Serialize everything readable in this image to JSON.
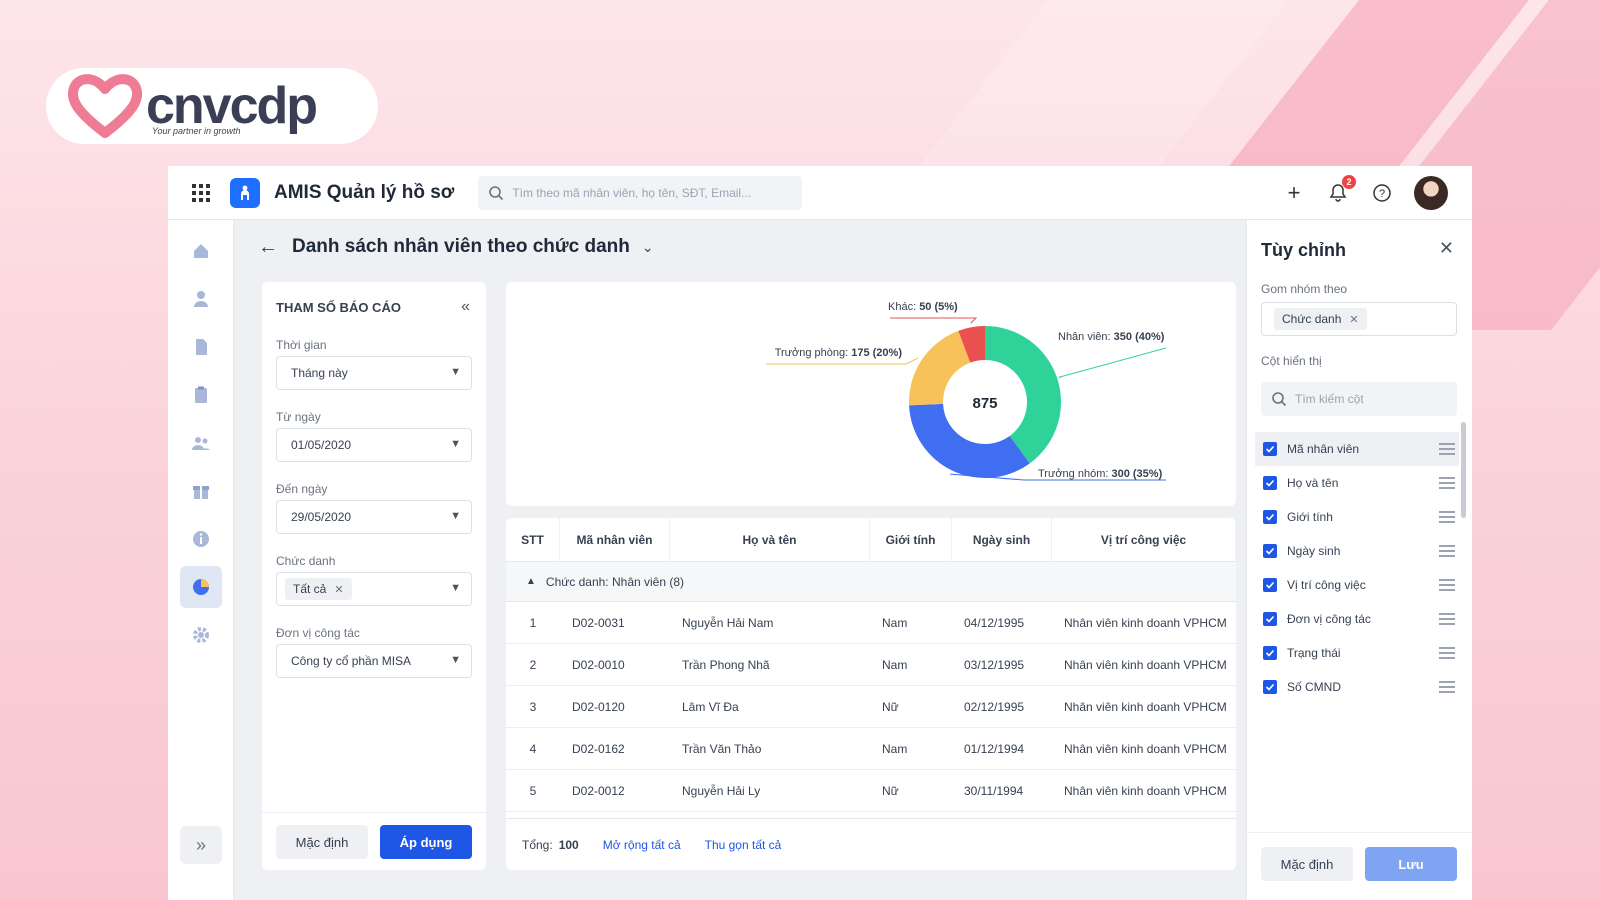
{
  "brand": {
    "name": "cnvcdp",
    "tagline": "Your partner in growth",
    "heart_color": "#ef7c95"
  },
  "app": {
    "title": "AMIS Quản lý hồ sơ",
    "search_placeholder": "Tìm theo mã nhân viên, họ tên, SĐT, Email...",
    "notification_count": "2",
    "accent": "#1e57e6"
  },
  "nav": {
    "items": [
      {
        "icon": "home-icon"
      },
      {
        "icon": "person-icon"
      },
      {
        "icon": "document-icon"
      },
      {
        "icon": "clipboard-icon"
      },
      {
        "icon": "people-icon"
      },
      {
        "icon": "gift-icon"
      },
      {
        "icon": "info-icon"
      },
      {
        "icon": "pie-chart-icon",
        "active": true
      },
      {
        "icon": "gear-icon"
      }
    ],
    "expand": "»"
  },
  "header": {
    "title": "Danh sách nhân viên theo chức danh"
  },
  "params": {
    "title": "THAM SỐ BÁO CÁO",
    "time_label": "Thời gian",
    "time_value": "Tháng này",
    "from_label": "Từ ngày",
    "from_value": "01/05/2020",
    "to_label": "Đến ngày",
    "to_value": "29/05/2020",
    "title_label": "Chức danh",
    "title_chip": "Tất cả",
    "unit_label": "Đơn vị công tác",
    "unit_value": "Công ty cổ phần MISA",
    "default_btn": "Mặc định",
    "apply_btn": "Áp dụng"
  },
  "chart_data": {
    "type": "pie",
    "total_label": "875",
    "series": [
      {
        "name": "Nhân viên",
        "value": 350,
        "percent": 40,
        "label": "350 (40%)",
        "color": "#2fd39a"
      },
      {
        "name": "Trưởng nhóm",
        "value": 300,
        "percent": 35,
        "label": "300 (35%)",
        "color": "#3f6ff0"
      },
      {
        "name": "Trưởng phòng",
        "value": 175,
        "percent": 20,
        "label": "175 (20%)",
        "color": "#f7c25a"
      },
      {
        "name": "Khác",
        "value": 50,
        "percent": 5,
        "label": "50 (5%)",
        "color": "#e9504f"
      }
    ]
  },
  "table": {
    "columns": [
      "STT",
      "Mã nhân viên",
      "Họ và tên",
      "Giới tính",
      "Ngày sinh",
      "Vị trí công việc"
    ],
    "group": "Chức danh: Nhân viên (8)",
    "rows": [
      [
        "1",
        "D02-0031",
        "Nguyễn Hải Nam",
        "Nam",
        "04/12/1995",
        "Nhân viên kinh doanh VPHCM"
      ],
      [
        "2",
        "D02-0010",
        "Trần Phong Nhã",
        "Nam",
        "03/12/1995",
        "Nhân viên kinh doanh VPHCM"
      ],
      [
        "3",
        "D02-0120",
        "Lâm Vĩ Đa",
        "Nữ",
        "02/12/1995",
        "Nhân viên kinh doanh VPHCM"
      ],
      [
        "4",
        "D02-0162",
        "Trần Văn Thảo",
        "Nam",
        "01/12/1994",
        "Nhân viên kinh doanh VPHCM"
      ],
      [
        "5",
        "D02-0012",
        "Nguyễn Hải Ly",
        "Nữ",
        "30/11/1994",
        "Nhân viên kinh doanh VPHCM"
      ]
    ],
    "total_label": "Tổng:",
    "total_value": "100",
    "expand_all": "Mở rộng tất cả",
    "collapse_all": "Thu gọn tất cả"
  },
  "customize": {
    "title": "Tùy chỉnh",
    "group_by_label": "Gom nhóm theo",
    "group_chip": "Chức danh",
    "columns_label": "Cột hiển thị",
    "search_placeholder": "Tìm kiếm cột",
    "columns": [
      "Mã nhân viên",
      "Họ và tên",
      "Giới tính",
      "Ngày sinh",
      "Vị trí công việc",
      "Đơn vị công tác",
      "Trạng thái",
      "Số CMND"
    ],
    "default_btn": "Mặc định",
    "save_btn": "Lưu"
  }
}
